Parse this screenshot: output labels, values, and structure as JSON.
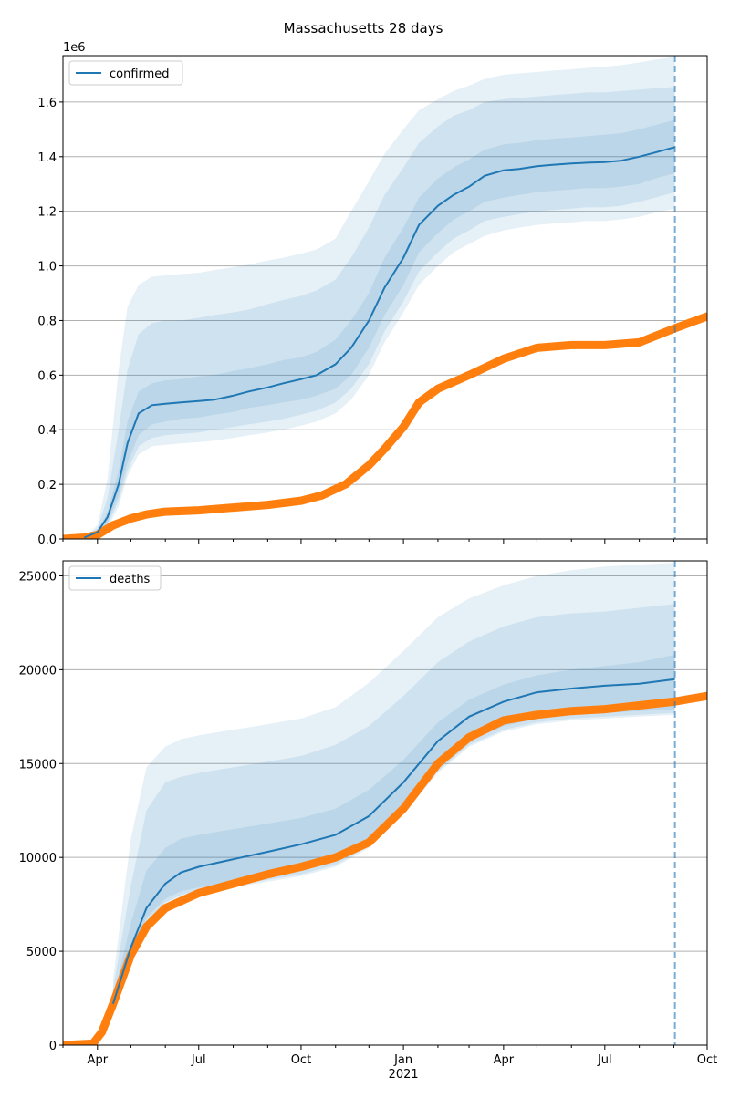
{
  "figure": {
    "title": "Massachusetts 28 days"
  },
  "colors": {
    "model_line": "#1f77b4",
    "band_fill": "#1f77b4",
    "observed": "#ff7f0e",
    "grid": "#b0b0b0",
    "cutoff_line": "#1f77b4"
  },
  "chart_data": [
    {
      "type": "line",
      "legend": [
        "confirmed"
      ],
      "legend_position": "upper-left",
      "grid": "horizontal",
      "y_multiplier_label": "1e6",
      "xlim": [
        "2020-03-01",
        "2021-10-01"
      ],
      "ylim": [
        0,
        1.77
      ],
      "yticks": [
        0.0,
        0.2,
        0.4,
        0.6,
        0.8,
        1.0,
        1.2,
        1.4,
        1.6
      ],
      "ytick_labels": [
        "0.0",
        "0.2",
        "0.4",
        "0.6",
        "0.8",
        "1.0",
        "1.2",
        "1.4",
        "1.6"
      ],
      "forecast_cutoff": "2021-09-02",
      "series": [
        {
          "name": "confirmed",
          "x": [
            "2020-03-20",
            "2020-04-01",
            "2020-04-10",
            "2020-04-20",
            "2020-04-28",
            "2020-05-08",
            "2020-05-20",
            "2020-06-01",
            "2020-06-15",
            "2020-07-01",
            "2020-07-15",
            "2020-08-01",
            "2020-08-15",
            "2020-09-01",
            "2020-09-15",
            "2020-10-01",
            "2020-10-15",
            "2020-11-01",
            "2020-11-15",
            "2020-12-01",
            "2020-12-15",
            "2021-01-01",
            "2021-01-15",
            "2021-02-01",
            "2021-02-15",
            "2021-03-01",
            "2021-03-15",
            "2021-04-01",
            "2021-04-15",
            "2021-05-01",
            "2021-05-15",
            "2021-06-01",
            "2021-06-15",
            "2021-07-01",
            "2021-07-15",
            "2021-08-01",
            "2021-08-15",
            "2021-09-02"
          ],
          "y": [
            0.005,
            0.025,
            0.08,
            0.2,
            0.35,
            0.46,
            0.49,
            0.495,
            0.5,
            0.505,
            0.51,
            0.525,
            0.54,
            0.555,
            0.57,
            0.585,
            0.6,
            0.64,
            0.7,
            0.8,
            0.92,
            1.03,
            1.15,
            1.22,
            1.26,
            1.29,
            1.33,
            1.35,
            1.355,
            1.365,
            1.37,
            1.375,
            1.378,
            1.38,
            1.385,
            1.4,
            1.415,
            1.435
          ]
        },
        {
          "name": "confirmed band 1",
          "lower": [
            0.005,
            0.02,
            0.06,
            0.16,
            0.28,
            0.38,
            0.42,
            0.43,
            0.44,
            0.445,
            0.455,
            0.465,
            0.48,
            0.49,
            0.5,
            0.51,
            0.525,
            0.55,
            0.6,
            0.7,
            0.82,
            0.93,
            1.05,
            1.12,
            1.17,
            1.2,
            1.235,
            1.25,
            1.26,
            1.27,
            1.275,
            1.28,
            1.285,
            1.285,
            1.29,
            1.3,
            1.32,
            1.34
          ],
          "upper": [
            0.005,
            0.03,
            0.1,
            0.25,
            0.43,
            0.54,
            0.57,
            0.58,
            0.585,
            0.595,
            0.6,
            0.615,
            0.625,
            0.64,
            0.655,
            0.665,
            0.685,
            0.73,
            0.8,
            0.9,
            1.03,
            1.14,
            1.25,
            1.32,
            1.36,
            1.39,
            1.425,
            1.445,
            1.45,
            1.46,
            1.465,
            1.47,
            1.475,
            1.48,
            1.485,
            1.5,
            1.515,
            1.535
          ]
        },
        {
          "name": "confirmed band 2",
          "lower": [
            0.005,
            0.015,
            0.05,
            0.14,
            0.25,
            0.34,
            0.37,
            0.38,
            0.385,
            0.39,
            0.4,
            0.41,
            0.42,
            0.43,
            0.44,
            0.455,
            0.47,
            0.5,
            0.55,
            0.64,
            0.76,
            0.87,
            0.98,
            1.05,
            1.1,
            1.13,
            1.165,
            1.18,
            1.19,
            1.2,
            1.205,
            1.21,
            1.215,
            1.215,
            1.22,
            1.235,
            1.25,
            1.27
          ],
          "upper": [
            0.005,
            0.04,
            0.15,
            0.4,
            0.62,
            0.75,
            0.79,
            0.8,
            0.8,
            0.81,
            0.82,
            0.83,
            0.84,
            0.86,
            0.875,
            0.89,
            0.91,
            0.95,
            1.03,
            1.14,
            1.26,
            1.36,
            1.45,
            1.51,
            1.55,
            1.57,
            1.6,
            1.61,
            1.615,
            1.62,
            1.625,
            1.63,
            1.635,
            1.635,
            1.64,
            1.645,
            1.65,
            1.655
          ]
        },
        {
          "name": "confirmed band 3",
          "lower": [
            0.005,
            0.012,
            0.04,
            0.12,
            0.23,
            0.31,
            0.34,
            0.345,
            0.35,
            0.355,
            0.36,
            0.37,
            0.38,
            0.39,
            0.4,
            0.415,
            0.43,
            0.46,
            0.51,
            0.6,
            0.72,
            0.83,
            0.93,
            1.0,
            1.05,
            1.08,
            1.11,
            1.13,
            1.14,
            1.15,
            1.155,
            1.16,
            1.165,
            1.165,
            1.17,
            1.18,
            1.195,
            1.21
          ],
          "upper": [
            0.005,
            0.05,
            0.22,
            0.62,
            0.85,
            0.93,
            0.96,
            0.965,
            0.97,
            0.975,
            0.985,
            0.995,
            1.005,
            1.02,
            1.03,
            1.045,
            1.06,
            1.1,
            1.2,
            1.31,
            1.41,
            1.5,
            1.57,
            1.61,
            1.64,
            1.66,
            1.685,
            1.7,
            1.705,
            1.71,
            1.715,
            1.72,
            1.725,
            1.73,
            1.735,
            1.745,
            1.755,
            1.765
          ]
        },
        {
          "name": "observed",
          "x": [
            "2020-03-01",
            "2020-03-20",
            "2020-04-01",
            "2020-04-15",
            "2020-05-01",
            "2020-05-15",
            "2020-06-01",
            "2020-07-01",
            "2020-08-01",
            "2020-09-01",
            "2020-10-01",
            "2020-10-20",
            "2020-11-10",
            "2020-12-01",
            "2020-12-15",
            "2021-01-01",
            "2021-01-15",
            "2021-02-01",
            "2021-03-01",
            "2021-04-01",
            "2021-05-01",
            "2021-06-01",
            "2021-07-01",
            "2021-08-01",
            "2021-09-01",
            "2021-10-01"
          ],
          "y": [
            0.0,
            0.005,
            0.015,
            0.05,
            0.075,
            0.09,
            0.1,
            0.105,
            0.115,
            0.125,
            0.14,
            0.16,
            0.2,
            0.27,
            0.33,
            0.41,
            0.5,
            0.55,
            0.6,
            0.66,
            0.7,
            0.71,
            0.71,
            0.72,
            0.77,
            0.815
          ]
        }
      ]
    },
    {
      "type": "line",
      "legend": [
        "deaths"
      ],
      "legend_position": "upper-left",
      "grid": "horizontal",
      "xlim": [
        "2020-03-01",
        "2021-10-01"
      ],
      "ylim": [
        0,
        25800
      ],
      "yticks": [
        0,
        5000,
        10000,
        15000,
        20000,
        25000
      ],
      "ytick_labels": [
        "0",
        "5000",
        "10000",
        "15000",
        "20000",
        "25000"
      ],
      "xtick_labels": [
        "Apr",
        "Jul",
        "Oct",
        "Jan",
        "Apr",
        "Jul",
        "Oct"
      ],
      "xtick_dates": [
        "2020-04-01",
        "2020-07-01",
        "2020-10-01",
        "2021-01-01",
        "2021-04-01",
        "2021-07-01",
        "2021-10-01"
      ],
      "xtick_sublabel": {
        "under": "Jan",
        "text": "2021"
      },
      "forecast_cutoff": "2021-09-02",
      "series": [
        {
          "name": "deaths",
          "x": [
            "2020-04-15",
            "2020-05-01",
            "2020-05-15",
            "2020-06-01",
            "2020-06-15",
            "2020-07-01",
            "2020-08-01",
            "2020-09-01",
            "2020-10-01",
            "2020-11-01",
            "2020-12-01",
            "2021-01-01",
            "2021-02-01",
            "2021-03-01",
            "2021-04-01",
            "2021-05-01",
            "2021-06-01",
            "2021-07-01",
            "2021-08-01",
            "2021-09-02"
          ],
          "y": [
            2200,
            5200,
            7300,
            8600,
            9200,
            9500,
            9900,
            10300,
            10700,
            11200,
            12200,
            14000,
            16200,
            17500,
            18300,
            18800,
            19000,
            19150,
            19250,
            19500
          ]
        },
        {
          "name": "deaths band 1",
          "lower": [
            2000,
            4800,
            6800,
            7800,
            8200,
            8400,
            8700,
            9000,
            9300,
            9800,
            10800,
            12600,
            14800,
            16200,
            17000,
            17400,
            17600,
            17700,
            17800,
            17900
          ],
          "upper": [
            2500,
            6500,
            9300,
            10500,
            11000,
            11200,
            11500,
            11800,
            12100,
            12600,
            13600,
            15200,
            17200,
            18400,
            19200,
            19700,
            20000,
            20200,
            20400,
            20800
          ]
        },
        {
          "name": "deaths band 2",
          "lower": [
            1900,
            4600,
            6600,
            7600,
            8000,
            8200,
            8500,
            8800,
            9100,
            9600,
            10600,
            12400,
            14600,
            16000,
            16800,
            17200,
            17400,
            17500,
            17600,
            17700
          ],
          "upper": [
            3000,
            8500,
            12500,
            14000,
            14300,
            14500,
            14800,
            15100,
            15400,
            16000,
            17000,
            18600,
            20400,
            21500,
            22300,
            22800,
            23000,
            23100,
            23300,
            23500
          ]
        },
        {
          "name": "deaths band 3",
          "lower": [
            1800,
            4500,
            6500,
            7500,
            7900,
            8100,
            8400,
            8700,
            9000,
            9500,
            10500,
            12300,
            14500,
            15900,
            16700,
            17100,
            17300,
            17400,
            17500,
            17600
          ],
          "upper": [
            3500,
            11000,
            14800,
            15900,
            16300,
            16500,
            16800,
            17100,
            17400,
            18000,
            19300,
            21000,
            22800,
            23800,
            24500,
            25000,
            25300,
            25500,
            25600,
            25700
          ]
        },
        {
          "name": "observed",
          "x": [
            "2020-03-01",
            "2020-03-28",
            "2020-04-05",
            "2020-04-15",
            "2020-05-01",
            "2020-05-15",
            "2020-06-01",
            "2020-07-01",
            "2020-08-01",
            "2020-09-01",
            "2020-10-01",
            "2020-11-01",
            "2020-12-01",
            "2021-01-01",
            "2021-02-01",
            "2021-03-01",
            "2021-04-01",
            "2021-05-01",
            "2021-06-01",
            "2021-07-01",
            "2021-08-01",
            "2021-09-01",
            "2021-10-01"
          ],
          "y": [
            0,
            80,
            700,
            2200,
            4800,
            6300,
            7300,
            8100,
            8600,
            9100,
            9500,
            10000,
            10800,
            12600,
            15000,
            16400,
            17300,
            17600,
            17800,
            17900,
            18100,
            18300,
            18600
          ]
        }
      ]
    }
  ]
}
